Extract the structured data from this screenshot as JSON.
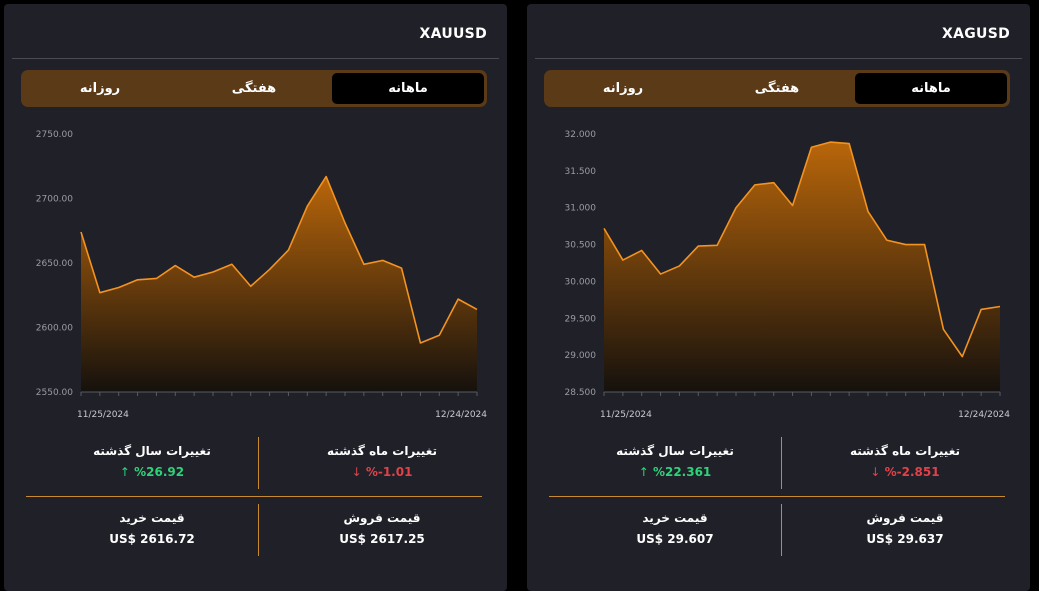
{
  "colors": {
    "accent": "#f39321",
    "up": "#2fd17a",
    "down": "#e0424a",
    "tab_bg": "#5a3a17",
    "panel_bg": "#1f2028"
  },
  "panels": [
    {
      "symbol": "XAUUSD",
      "tabs": [
        "ماهانه",
        "هفتگی",
        "روزانه"
      ],
      "active_tab": "ماهانه",
      "month_change_label": "تغییرات ماه گذشته",
      "month_change_value": "%-1.01",
      "month_change_arrow": "↓",
      "year_change_label": "تغییرات سال گذشته",
      "year_change_value": "%26.92",
      "year_change_arrow": "↑",
      "sell_label": "قیمت فروش",
      "sell_value": "US$ 2617.25",
      "buy_label": "قیمت خرید",
      "buy_value": "US$ 2616.72"
    },
    {
      "symbol": "XAGUSD",
      "tabs": [
        "ماهانه",
        "هفتگی",
        "روزانه"
      ],
      "active_tab": "ماهانه",
      "month_change_label": "تغییرات ماه گذشته",
      "month_change_value": "%-2.851",
      "month_change_arrow": "↓",
      "year_change_label": "تغییرات سال گذشته",
      "year_change_value": "%22.361",
      "year_change_arrow": "↑",
      "sell_label": "قیمت فروش",
      "sell_value": "US$ 29.637",
      "buy_label": "قیمت خرید",
      "buy_value": "US$ 29.607"
    }
  ],
  "chart_data": [
    {
      "type": "area",
      "x_start_label": "11/25/2024",
      "x_end_label": "12/24/2024",
      "ylim": [
        2550,
        2750
      ],
      "yticks": [
        "2750.00",
        "2700.00",
        "2650.00",
        "2600.00",
        "2550.00"
      ],
      "ytick_values": [
        2750,
        2700,
        2650,
        2600,
        2550
      ],
      "values": [
        2674,
        2627,
        2631,
        2637,
        2638,
        2648,
        2639,
        2643,
        2649,
        2632,
        2645,
        2660,
        2694,
        2717,
        2681,
        2649,
        2652,
        2646,
        2588,
        2594,
        2622,
        2614
      ]
    },
    {
      "type": "area",
      "x_start_label": "11/25/2024",
      "x_end_label": "12/24/2024",
      "ylim": [
        28.5,
        32.0
      ],
      "yticks": [
        "32.000",
        "31.500",
        "31.000",
        "30.500",
        "30.000",
        "29.500",
        "29.000",
        "28.500"
      ],
      "ytick_values": [
        32.0,
        31.5,
        31.0,
        30.5,
        30.0,
        29.5,
        29.0,
        28.5
      ],
      "values": [
        30.72,
        30.29,
        30.42,
        30.1,
        30.21,
        30.48,
        30.49,
        31.0,
        31.31,
        31.34,
        31.03,
        31.82,
        31.89,
        31.87,
        30.95,
        30.56,
        30.5,
        30.5,
        29.35,
        28.98,
        29.62,
        29.66
      ]
    }
  ]
}
